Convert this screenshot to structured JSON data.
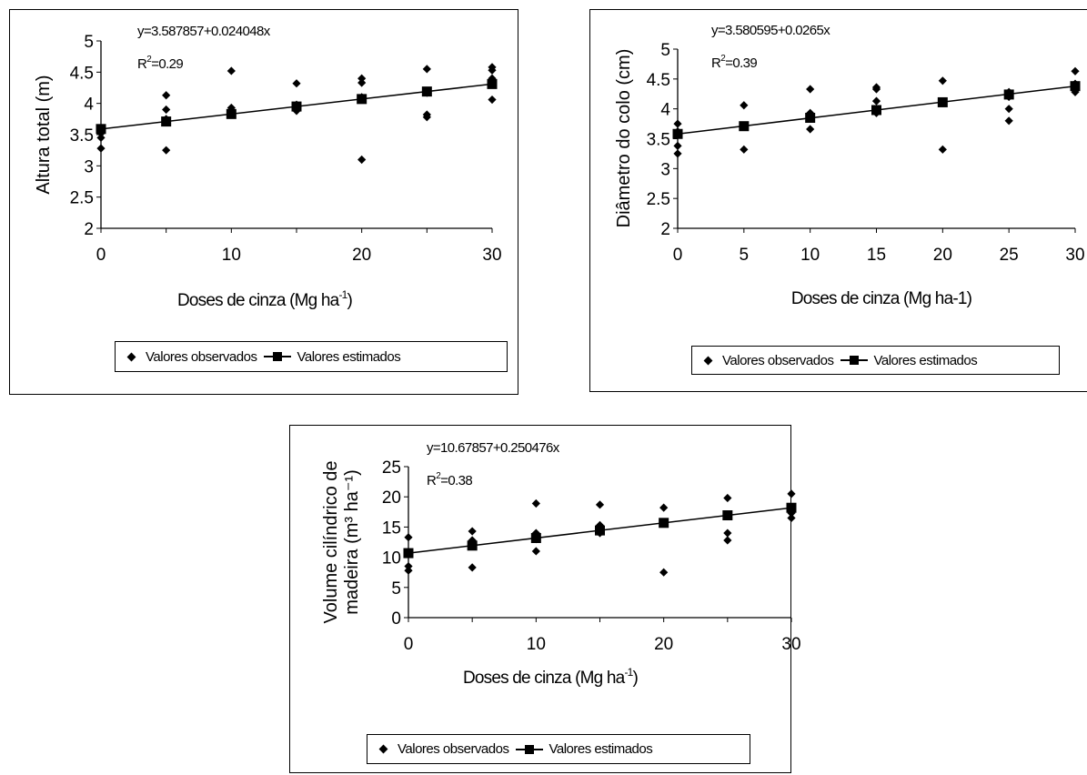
{
  "chart_data": [
    {
      "type": "scatter",
      "equation": "y=3.587857+0.024048x",
      "r2_prefix": "R",
      "r2_sup": "2",
      "r2_value": "=0.29",
      "xlabel_main": "Doses de cinza (Mg ha",
      "xlabel_sup": "-1",
      "xlabel_end": ")",
      "ylabel_lines": [
        "Altura total (m)"
      ],
      "xlim": [
        0,
        30
      ],
      "ylim": [
        2,
        5
      ],
      "xticks": [
        "0",
        "10",
        "20",
        "30"
      ],
      "yticks": [
        "2",
        "2.5",
        "3",
        "3.5",
        "4",
        "4.5",
        "5"
      ],
      "legend_observed": "Valores observados",
      "legend_estimated": "Valores estimados",
      "observed": [
        [
          0,
          3.28
        ],
        [
          0,
          3.45
        ],
        [
          0,
          3.52
        ],
        [
          0,
          3.58
        ],
        [
          5,
          3.25
        ],
        [
          5,
          3.75
        ],
        [
          5,
          3.9
        ],
        [
          5,
          4.13
        ],
        [
          10,
          3.85
        ],
        [
          10,
          3.88
        ],
        [
          10,
          3.93
        ],
        [
          10,
          4.52
        ],
        [
          15,
          3.88
        ],
        [
          15,
          3.93
        ],
        [
          15,
          3.98
        ],
        [
          15,
          4.32
        ],
        [
          20,
          3.1
        ],
        [
          20,
          4.33
        ],
        [
          20,
          4.4
        ],
        [
          20,
          4.1
        ],
        [
          25,
          3.78
        ],
        [
          25,
          3.82
        ],
        [
          25,
          4.17
        ],
        [
          25,
          4.55
        ],
        [
          30,
          4.06
        ],
        [
          30,
          4.4
        ],
        [
          30,
          4.53
        ],
        [
          30,
          4.58
        ]
      ],
      "estimated": [
        [
          0,
          3.59
        ],
        [
          5,
          3.71
        ],
        [
          10,
          3.83
        ],
        [
          15,
          3.95
        ],
        [
          20,
          4.07
        ],
        [
          25,
          4.19
        ],
        [
          30,
          4.31
        ]
      ],
      "colors": {
        "marker": "#000000"
      }
    },
    {
      "type": "scatter",
      "equation": "y=3.580595+0.0265x",
      "r2_prefix": "R",
      "r2_sup": "2",
      "r2_value": "=0.39",
      "xlabel_main": "Doses de cinza (Mg ha-1)",
      "xlabel_sup": "",
      "xlabel_end": "",
      "ylabel_lines": [
        "Diâmetro do colo (cm)"
      ],
      "xlim": [
        0,
        30
      ],
      "ylim": [
        2,
        5
      ],
      "xticks": [
        "0",
        "5",
        "10",
        "15",
        "20",
        "25",
        "30"
      ],
      "yticks": [
        "2",
        "2.5",
        "3",
        "3.5",
        "4",
        "4.5",
        "5"
      ],
      "legend_observed": "Valores observados",
      "legend_estimated": "Valores estimados",
      "observed": [
        [
          0,
          3.25
        ],
        [
          0,
          3.38
        ],
        [
          0,
          3.62
        ],
        [
          0,
          3.75
        ],
        [
          5,
          3.32
        ],
        [
          5,
          3.72
        ],
        [
          5,
          4.06
        ],
        [
          10,
          3.66
        ],
        [
          10,
          3.88
        ],
        [
          10,
          3.93
        ],
        [
          10,
          4.33
        ],
        [
          15,
          3.93
        ],
        [
          15,
          4.13
        ],
        [
          15,
          4.33
        ],
        [
          15,
          4.36
        ],
        [
          20,
          3.32
        ],
        [
          20,
          4.1
        ],
        [
          20,
          4.47
        ],
        [
          25,
          3.8
        ],
        [
          25,
          4.0
        ],
        [
          25,
          4.2
        ],
        [
          25,
          4.28
        ],
        [
          30,
          4.28
        ],
        [
          30,
          4.35
        ],
        [
          30,
          4.42
        ],
        [
          30,
          4.63
        ]
      ],
      "estimated": [
        [
          0,
          3.58
        ],
        [
          5,
          3.71
        ],
        [
          10,
          3.85
        ],
        [
          15,
          3.98
        ],
        [
          20,
          4.11
        ],
        [
          25,
          4.24
        ],
        [
          30,
          4.38
        ]
      ],
      "colors": {
        "marker": "#000000"
      }
    },
    {
      "type": "scatter",
      "equation": "y=10.67857+0.250476x",
      "r2_prefix": "R",
      "r2_sup": "2",
      "r2_value": "=0.38",
      "xlabel_main": "Doses de cinza (Mg ha",
      "xlabel_sup": "-1",
      "xlabel_end": ")",
      "ylabel_lines": [
        "Volume cilíndrico de",
        "madeira (m³ ha⁻¹)"
      ],
      "xlim": [
        0,
        30
      ],
      "ylim": [
        0,
        25
      ],
      "xticks": [
        "0",
        "10",
        "20",
        "30"
      ],
      "yticks": [
        "0",
        "5",
        "10",
        "15",
        "20",
        "25"
      ],
      "legend_observed": "Valores observados",
      "legend_estimated": "Valores estimados",
      "observed": [
        [
          0,
          7.8
        ],
        [
          0,
          8.5
        ],
        [
          0,
          13.3
        ],
        [
          5,
          8.3
        ],
        [
          5,
          12.2
        ],
        [
          5,
          12.8
        ],
        [
          5,
          14.3
        ],
        [
          10,
          11.0
        ],
        [
          10,
          13.0
        ],
        [
          10,
          14.0
        ],
        [
          10,
          18.9
        ],
        [
          15,
          14.0
        ],
        [
          15,
          14.8
        ],
        [
          15,
          15.3
        ],
        [
          15,
          18.7
        ],
        [
          20,
          7.5
        ],
        [
          20,
          15.8
        ],
        [
          20,
          18.2
        ],
        [
          25,
          12.8
        ],
        [
          25,
          14.0
        ],
        [
          25,
          16.9
        ],
        [
          25,
          19.8
        ],
        [
          30,
          16.5
        ],
        [
          30,
          17.3
        ],
        [
          30,
          20.5
        ]
      ],
      "estimated": [
        [
          0,
          10.68
        ],
        [
          5,
          11.93
        ],
        [
          10,
          13.18
        ],
        [
          15,
          14.44
        ],
        [
          20,
          15.69
        ],
        [
          25,
          16.94
        ],
        [
          30,
          18.19
        ]
      ],
      "colors": {
        "marker": "#000000"
      }
    }
  ]
}
